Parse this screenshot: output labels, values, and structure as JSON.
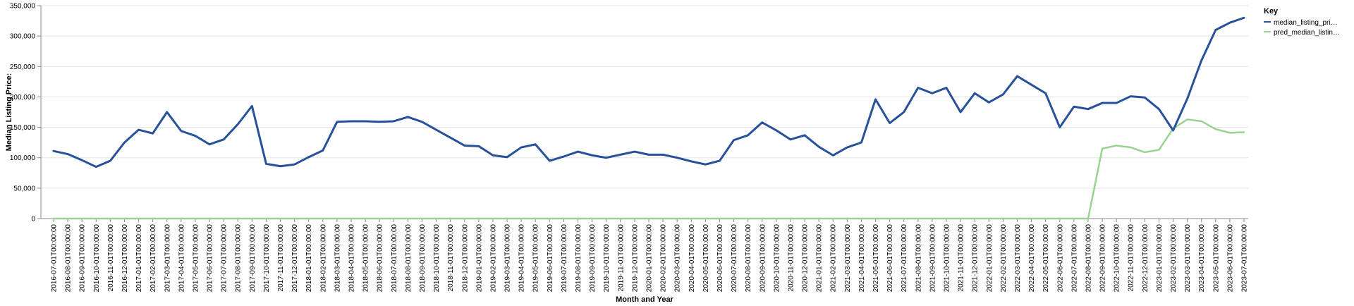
{
  "chart_data": {
    "type": "line",
    "xlabel": "Month and Year",
    "ylabel": "Median Listing Price:",
    "ylim": [
      0,
      350000
    ],
    "yticks": [
      0,
      50000,
      100000,
      150000,
      200000,
      250000,
      300000,
      350000
    ],
    "ytick_labels": [
      "0",
      "50,000",
      "100,000",
      "150,000",
      "200,000",
      "250,000",
      "300,000",
      "350,000"
    ],
    "grid": true,
    "legend": {
      "title": "Key",
      "placement": "right"
    },
    "x": [
      "2016-07-01T00:00:00",
      "2016-08-01T00:00:00",
      "2016-09-01T00:00:00",
      "2016-10-01T00:00:00",
      "2016-11-01T00:00:00",
      "2016-12-01T00:00:00",
      "2017-01-01T00:00:00",
      "2017-02-01T00:00:00",
      "2017-03-01T00:00:00",
      "2017-04-01T00:00:00",
      "2017-05-01T00:00:00",
      "2017-06-01T00:00:00",
      "2017-07-01T00:00:00",
      "2017-08-01T00:00:00",
      "2017-09-01T00:00:00",
      "2017-10-01T00:00:00",
      "2017-11-01T00:00:00",
      "2017-12-01T00:00:00",
      "2018-01-01T00:00:00",
      "2018-02-01T00:00:00",
      "2018-03-01T00:00:00",
      "2018-04-01T00:00:00",
      "2018-05-01T00:00:00",
      "2018-06-01T00:00:00",
      "2018-07-01T00:00:00",
      "2018-08-01T00:00:00",
      "2018-09-01T00:00:00",
      "2018-10-01T00:00:00",
      "2018-11-01T00:00:00",
      "2018-12-01T00:00:00",
      "2019-01-01T00:00:00",
      "2019-02-01T00:00:00",
      "2019-03-01T00:00:00",
      "2019-04-01T00:00:00",
      "2019-05-01T00:00:00",
      "2019-06-01T00:00:00",
      "2019-07-01T00:00:00",
      "2019-08-01T00:00:00",
      "2019-09-01T00:00:00",
      "2019-10-01T00:00:00",
      "2019-11-01T00:00:00",
      "2019-12-01T00:00:00",
      "2020-01-01T00:00:00",
      "2020-02-01T00:00:00",
      "2020-03-01T00:00:00",
      "2020-04-01T00:00:00",
      "2020-05-01T00:00:00",
      "2020-06-01T00:00:00",
      "2020-07-01T00:00:00",
      "2020-08-01T00:00:00",
      "2020-09-01T00:00:00",
      "2020-10-01T00:00:00",
      "2020-11-01T00:00:00",
      "2020-12-01T00:00:00",
      "2021-01-01T00:00:00",
      "2021-02-01T00:00:00",
      "2021-03-01T00:00:00",
      "2021-04-01T00:00:00",
      "2021-05-01T00:00:00",
      "2021-06-01T00:00:00",
      "2021-07-01T00:00:00",
      "2021-08-01T00:00:00",
      "2021-09-01T00:00:00",
      "2021-10-01T00:00:00",
      "2021-11-01T00:00:00",
      "2021-12-01T00:00:00",
      "2022-01-01T00:00:00",
      "2022-02-01T00:00:00",
      "2022-03-01T00:00:00",
      "2022-04-01T00:00:00",
      "2022-05-01T00:00:00",
      "2022-06-01T00:00:00",
      "2022-07-01T00:00:00",
      "2022-08-01T00:00:00",
      "2022-09-01T00:00:00",
      "2022-10-01T00:00:00",
      "2022-11-01T00:00:00",
      "2022-12-01T00:00:00",
      "2023-01-01T00:00:00",
      "2023-02-01T00:00:00",
      "2023-03-01T00:00:00",
      "2023-04-01T00:00:00",
      "2023-05-01T00:00:00",
      "2023-06-01T00:00:00",
      "2023-07-01T00:00:00"
    ],
    "series": [
      {
        "name": "median_listing_pri…",
        "color": "#27529b",
        "values": [
          111000,
          106000,
          96000,
          85000,
          95000,
          125000,
          146000,
          140000,
          175000,
          144000,
          136000,
          122000,
          130000,
          155000,
          185000,
          90000,
          86000,
          89000,
          101000,
          112000,
          159000,
          160000,
          160000,
          159000,
          160000,
          167000,
          159000,
          146000,
          133000,
          120000,
          119000,
          104000,
          101000,
          117000,
          122000,
          95000,
          102000,
          110000,
          104000,
          100000,
          105000,
          110000,
          105000,
          105000,
          100000,
          94000,
          89000,
          95000,
          129000,
          137000,
          158000,
          145000,
          130000,
          137000,
          118000,
          104000,
          117000,
          125000,
          196000,
          157000,
          175000,
          215000,
          206000,
          215000,
          175000,
          206000,
          191000,
          204000,
          234000,
          220000,
          206000,
          150000,
          184000,
          180000,
          190000,
          190000,
          201000,
          199000,
          180000,
          145000,
          197000,
          260000,
          310000,
          322000,
          330000
        ]
      },
      {
        "name": "pred_median_listin…",
        "color": "#98d391",
        "values": [
          0,
          0,
          0,
          0,
          0,
          0,
          0,
          0,
          0,
          0,
          0,
          0,
          0,
          0,
          0,
          0,
          0,
          0,
          0,
          0,
          0,
          0,
          0,
          0,
          0,
          0,
          0,
          0,
          0,
          0,
          0,
          0,
          0,
          0,
          0,
          0,
          0,
          0,
          0,
          0,
          0,
          0,
          0,
          0,
          0,
          0,
          0,
          0,
          0,
          0,
          0,
          0,
          0,
          0,
          0,
          0,
          0,
          0,
          0,
          0,
          0,
          0,
          0,
          0,
          0,
          0,
          0,
          0,
          0,
          0,
          0,
          0,
          0,
          0,
          115000,
          120000,
          117000,
          109000,
          113000,
          148000,
          163000,
          160000,
          147000,
          141000,
          142000
        ]
      }
    ]
  }
}
